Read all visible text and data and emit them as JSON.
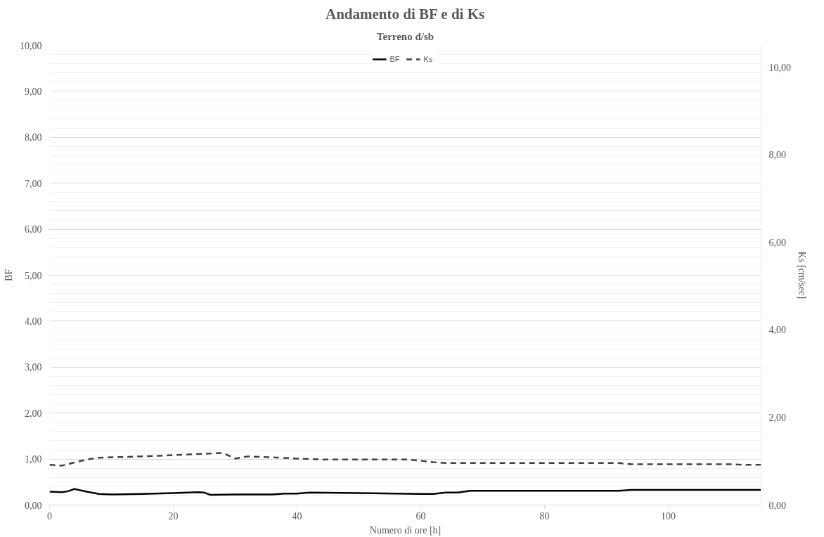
{
  "chart_data": {
    "type": "line",
    "title": "Andamento di BF e di Ks",
    "subtitle": "Terreno d/sb",
    "xlabel": "Numero di ore [h]",
    "ylabel": "BF",
    "y2label": "Ks [cm/sec]",
    "xlim": [
      0,
      115
    ],
    "xticks": [
      0,
      20,
      40,
      60,
      80,
      100
    ],
    "ylim": [
      0,
      10
    ],
    "yticks": [
      {
        "value": 0,
        "label": "0,00"
      },
      {
        "value": 1,
        "label": "1,00"
      },
      {
        "value": 2,
        "label": "2,00"
      },
      {
        "value": 3,
        "label": "3,00"
      },
      {
        "value": 4,
        "label": "4,00"
      },
      {
        "value": 5,
        "label": "5,00"
      },
      {
        "value": 6,
        "label": "6,00"
      },
      {
        "value": 7,
        "label": "7,00"
      },
      {
        "value": 8,
        "label": "8,00"
      },
      {
        "value": 9,
        "label": "9,00"
      },
      {
        "value": 10,
        "label": "10,00"
      }
    ],
    "y2lim": [
      0,
      10.5
    ],
    "y2ticks": [
      {
        "value": 0,
        "label": "0,00"
      },
      {
        "value": 2,
        "label": "2,00"
      },
      {
        "value": 4,
        "label": "4,00"
      },
      {
        "value": 6,
        "label": "6,00"
      },
      {
        "value": 8,
        "label": "8,00"
      },
      {
        "value": 10,
        "label": "10,00"
      }
    ],
    "grid": "y",
    "legend": "top",
    "series": [
      {
        "name": "BF",
        "color": "#000000",
        "line_style": "solid",
        "x": [
          0,
          2,
          3,
          4,
          6,
          8,
          10,
          15,
          20,
          24,
          25,
          26,
          30,
          36,
          38,
          40,
          42,
          50,
          60,
          62,
          64,
          66,
          68,
          92,
          94,
          115
        ],
        "values": [
          0.29,
          0.28,
          0.3,
          0.35,
          0.29,
          0.24,
          0.23,
          0.24,
          0.26,
          0.28,
          0.27,
          0.22,
          0.23,
          0.23,
          0.25,
          0.25,
          0.27,
          0.26,
          0.24,
          0.24,
          0.27,
          0.27,
          0.31,
          0.31,
          0.33,
          0.33
        ]
      },
      {
        "name": "Ks",
        "color": "#404040",
        "line_style": "dashed",
        "axis": "y2",
        "x": [
          0,
          2,
          4,
          6,
          8,
          10,
          15,
          20,
          25,
          28,
          30,
          32,
          36,
          40,
          44,
          58,
          60,
          62,
          64,
          92,
          94,
          110,
          112,
          115
        ],
        "values": [
          0.92,
          0.9,
          0.97,
          1.04,
          1.08,
          1.09,
          1.11,
          1.14,
          1.17,
          1.19,
          1.06,
          1.11,
          1.09,
          1.06,
          1.04,
          1.04,
          1.01,
          0.98,
          0.96,
          0.96,
          0.93,
          0.93,
          0.92,
          0.92
        ]
      }
    ]
  }
}
